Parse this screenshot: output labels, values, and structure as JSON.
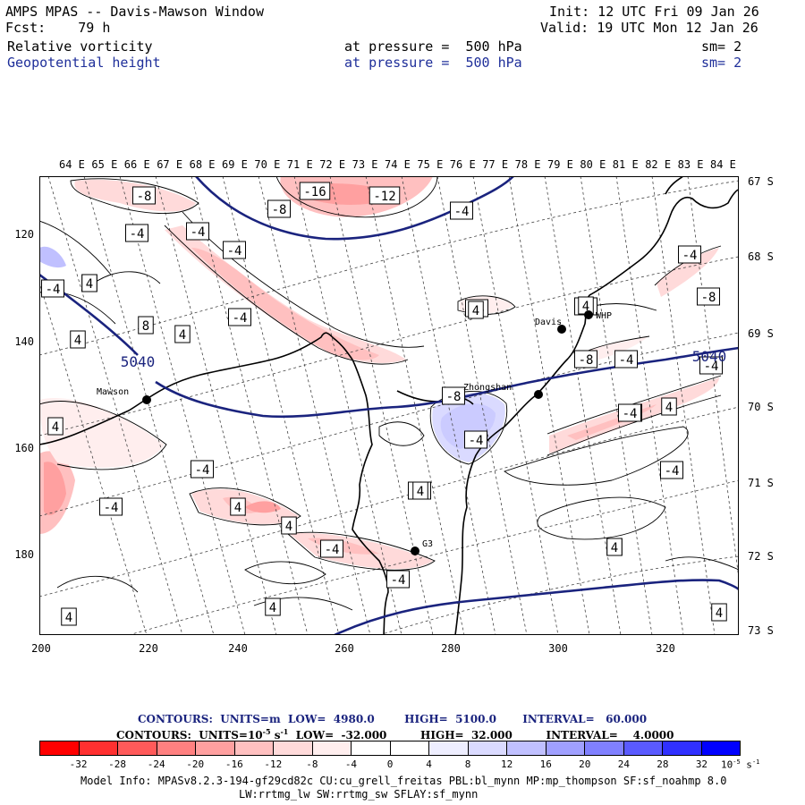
{
  "header": {
    "line1_left": "AMPS MPAS -- Davis-Mawson Window",
    "line1_right": "Init: 12 UTC Fri 09 Jan 26",
    "line2_left": "Fcst:    79 h",
    "line2_right": "Valid: 19 UTC Mon 12 Jan 26",
    "field1_name": "Relative vorticity",
    "field1_level": "at pressure =  500 hPa",
    "field1_sm": "sm= 2",
    "field2_name": "Geopotential height",
    "field2_level": "at pressure =  500 hPa",
    "field2_sm": "sm= 2"
  },
  "axes": {
    "top_lon": [
      "64 E",
      "65 E",
      "66 E",
      "67 E",
      "68 E",
      "69 E",
      "70 E",
      "71 E",
      "72 E",
      "73 E",
      "74 E",
      "75 E",
      "76 E",
      "77 E",
      "78 E",
      "79 E",
      "80 E",
      "81 E",
      "82 E",
      "83 E",
      "84 E"
    ],
    "right_lat": [
      "67 S",
      "68 S",
      "69 S",
      "70 S",
      "71 S",
      "72 S",
      "73 S"
    ],
    "left_y": [
      "120",
      "140",
      "160",
      "180"
    ],
    "bottom_x": [
      "200",
      "220",
      "240",
      "260",
      "280",
      "300",
      "320"
    ]
  },
  "stations": {
    "davis": "Davis",
    "whp": "WHP",
    "mawson": "Mawson",
    "zhongshan": "Zhongshan",
    "g3": "G3"
  },
  "height_labels": [
    "5040",
    "5040"
  ],
  "vorticity_labels": [
    "-8",
    "-16",
    "-12",
    "-8",
    "-4",
    "-4",
    "-4",
    "-4",
    "8",
    "8",
    "4",
    "4",
    "-4",
    "-8",
    "-4",
    "-4",
    "-4",
    "4",
    "-4",
    "-4",
    "4",
    "4",
    "-4",
    "-4",
    "4",
    "4",
    "-4",
    "-4",
    "4",
    "-4",
    "-4",
    "-8",
    "-4",
    "-8",
    "-4",
    "4",
    "4",
    "-4",
    "4",
    "4",
    "-4",
    "4",
    "4",
    "4",
    "-4"
  ],
  "contour_info": {
    "line1": "CONTOURS:  UNITS=m  LOW=  4980.0        HIGH=  5100.0       INTERVAL=   60.000",
    "line2_a": "CONTOURS:  UNITS=10",
    "line2_exp": "-5",
    "line2_b": " s",
    "line2_exp2": "-1",
    "line2_c": "  LOW=  -32.000         HIGH=  32.000         INTERVAL=    4.0000"
  },
  "colorbar": {
    "labels": [
      "-32",
      "-28",
      "-24",
      "-20",
      "-16",
      "-12",
      "-8",
      "-4",
      "0",
      "4",
      "8",
      "12",
      "16",
      "20",
      "24",
      "28",
      "32"
    ],
    "unit": "10",
    "unit_exp": "-5",
    "unit_tail": " s",
    "unit_exp2": "-1",
    "colors": [
      "#ff0000",
      "#ff3030",
      "#ff5a5a",
      "#ff8080",
      "#ffa0a0",
      "#ffc0c0",
      "#ffdada",
      "#ffeeee",
      "#ffffff",
      "#ffffff",
      "#eeeeff",
      "#dadaff",
      "#c0c0ff",
      "#a0a0ff",
      "#8080ff",
      "#5a5aff",
      "#3030ff",
      "#0000ff"
    ]
  },
  "footer": {
    "line1": "Model Info: MPASv8.2.3-194-gf29cd82c CU:cu_grell_freitas PBL:bl_mynn MP:mp_thompson SF:sf_noahmp 8.0",
    "line2": "LW:rrtmg_lw SW:rrtmg_sw SFLAY:sf_mynn"
  }
}
